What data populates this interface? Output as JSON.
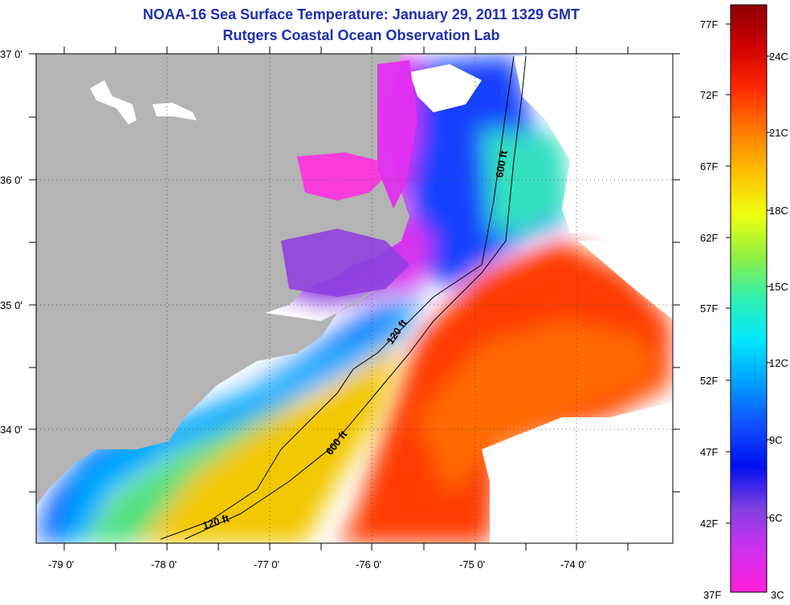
{
  "title": {
    "line1": "NOAA-16 Sea Surface Temperature:  January 29, 2011 1329 GMT",
    "line2": "Rutgers Coastal Ocean Observation Lab"
  },
  "map": {
    "lat_labels": [
      "37 0'",
      "36 0'",
      "35 0'",
      "34 0'"
    ],
    "lon_labels": [
      "-79 0'",
      "-78 0'",
      "-77 0'",
      "-76 0'",
      "-75 0'",
      "-74 0'"
    ],
    "contour_labels": [
      "600 ft",
      "120 ft",
      "600 ft",
      "120 ft"
    ],
    "colors": {
      "land": "#b4b4b4",
      "cloud": "#ffffff",
      "frame": "#000000"
    }
  },
  "colorbar": {
    "fahrenheit": [
      "77F",
      "72F",
      "67F",
      "62F",
      "57F",
      "52F",
      "47F",
      "42F",
      "37F"
    ],
    "celsius": [
      "24C",
      "21C",
      "18C",
      "15C",
      "12C",
      "9C",
      "6C",
      "3C"
    ],
    "gradient": [
      "#8b0000",
      "#d00000",
      "#ff2a00",
      "#ff7a00",
      "#ffc000",
      "#f0ff10",
      "#90f040",
      "#30f0b0",
      "#00e8ff",
      "#00a0ff",
      "#1050ff",
      "#0010f0",
      "#8040e0",
      "#d030f0",
      "#ff20d8"
    ]
  }
}
